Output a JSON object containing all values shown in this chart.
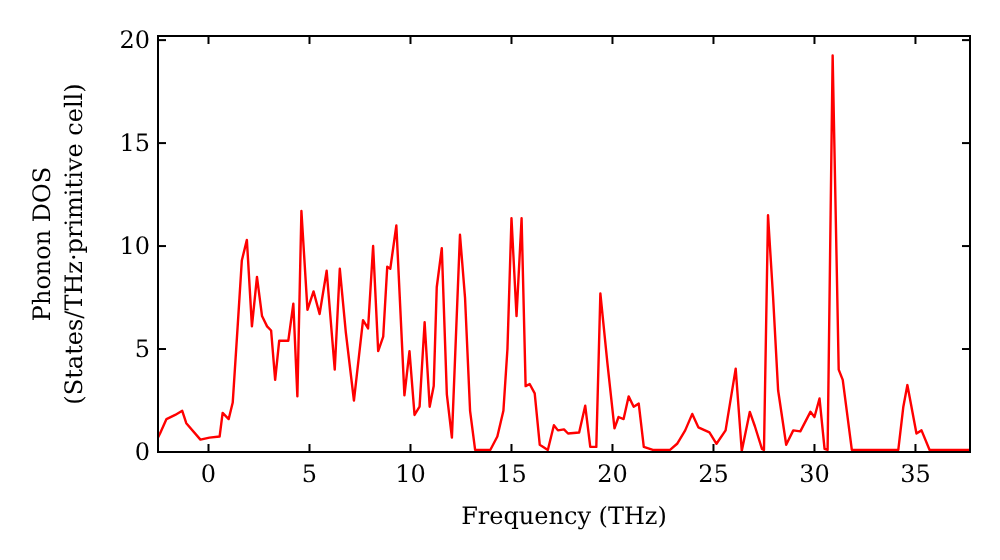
{
  "chart_data": {
    "type": "line",
    "xlabel": "Frequency (THz)",
    "ylabel": "Phonon DOS\n(States/THz·primitive cell)",
    "xlim": [
      -2.5,
      37.7
    ],
    "ylim": [
      0,
      20.2
    ],
    "xticks": [
      0,
      5,
      10,
      15,
      20,
      25,
      30,
      35
    ],
    "yticks": [
      0,
      5,
      10,
      15,
      20
    ],
    "grid": false,
    "series": [
      {
        "color": "#ff0000",
        "x": [
          -2.5,
          -2.4,
          -2.08,
          -1.65,
          -1.3,
          -1.1,
          -0.4,
          0.05,
          0.55,
          0.7,
          1.0,
          1.2,
          1.45,
          1.65,
          1.9,
          2.15,
          2.4,
          2.65,
          2.9,
          3.1,
          3.3,
          3.5,
          3.95,
          4.2,
          4.4,
          4.6,
          4.9,
          5.2,
          5.5,
          5.85,
          6.25,
          6.5,
          6.8,
          7.2,
          7.65,
          7.9,
          8.15,
          8.4,
          8.65,
          8.85,
          9.0,
          9.3,
          9.7,
          9.95,
          10.2,
          10.45,
          10.7,
          10.95,
          11.15,
          11.3,
          11.55,
          11.8,
          12.05,
          12.45,
          12.7,
          12.95,
          13.2,
          13.95,
          14.3,
          14.6,
          14.8,
          15.0,
          15.25,
          15.5,
          15.7,
          15.9,
          16.15,
          16.4,
          16.8,
          17.1,
          17.3,
          17.6,
          17.8,
          18.35,
          18.65,
          18.9,
          19.2,
          19.4,
          19.75,
          20.1,
          20.3,
          20.55,
          20.8,
          21.05,
          21.3,
          21.55,
          22.0,
          22.85,
          23.2,
          23.6,
          23.95,
          24.25,
          24.8,
          25.15,
          25.6,
          26.1,
          26.4,
          26.8,
          27.05,
          27.4,
          27.5,
          27.7,
          27.95,
          28.2,
          28.6,
          28.95,
          29.3,
          29.8,
          30.0,
          30.25,
          30.5,
          30.65,
          30.9,
          31.2,
          31.4,
          31.85,
          34.15,
          34.4,
          34.6,
          35.05,
          35.3,
          35.7,
          37.7
        ],
        "values": [
          0.7,
          0.9,
          1.6,
          1.8,
          2.0,
          1.4,
          0.6,
          0.7,
          0.75,
          1.9,
          1.6,
          2.4,
          6.2,
          9.3,
          10.3,
          6.1,
          8.5,
          6.6,
          6.1,
          5.9,
          3.5,
          5.4,
          5.4,
          7.2,
          2.7,
          11.7,
          6.9,
          7.8,
          6.7,
          8.8,
          4.0,
          8.9,
          5.8,
          2.5,
          6.4,
          6.0,
          10.0,
          4.9,
          5.6,
          9.0,
          8.9,
          11.0,
          2.75,
          4.9,
          1.8,
          2.2,
          6.3,
          2.2,
          3.2,
          8.0,
          9.9,
          2.8,
          0.7,
          10.55,
          7.5,
          2.0,
          0.1,
          0.1,
          0.75,
          2.0,
          5.0,
          11.35,
          6.6,
          11.35,
          3.2,
          3.3,
          2.85,
          0.35,
          0.1,
          1.3,
          1.05,
          1.1,
          0.9,
          0.95,
          2.25,
          0.25,
          0.25,
          7.7,
          4.3,
          1.15,
          1.7,
          1.6,
          2.7,
          2.2,
          2.35,
          0.25,
          0.1,
          0.1,
          0.4,
          1.05,
          1.85,
          1.2,
          0.95,
          0.4,
          1.05,
          4.05,
          0.05,
          1.95,
          1.25,
          0.15,
          0.1,
          11.5,
          7.55,
          3.0,
          0.35,
          1.05,
          1.0,
          1.95,
          1.7,
          2.6,
          0.15,
          0.1,
          19.25,
          4.0,
          3.5,
          0.1,
          0.1,
          2.2,
          3.25,
          0.9,
          1.05,
          0.1,
          0.1
        ]
      }
    ]
  }
}
